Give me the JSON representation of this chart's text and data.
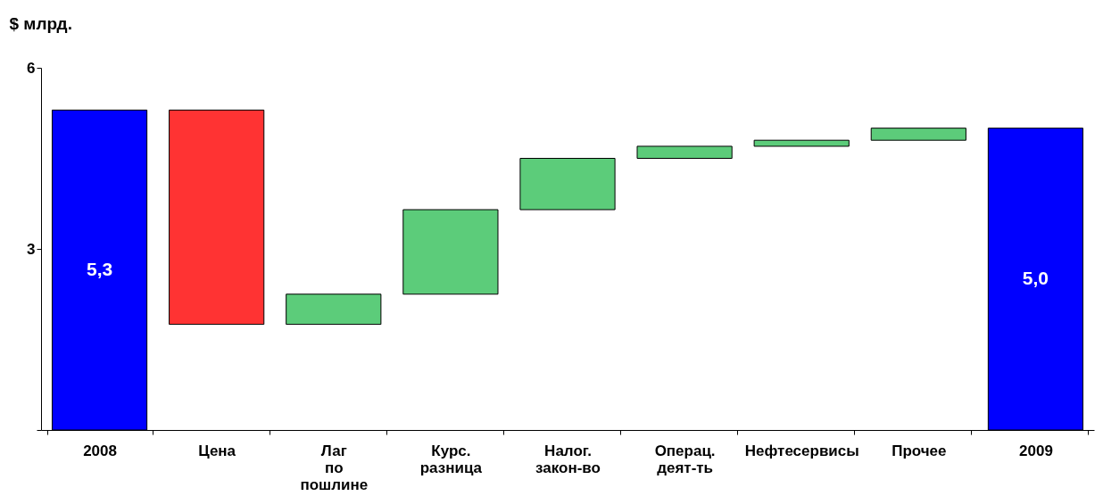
{
  "chart_data": {
    "type": "bar",
    "ylabel": "$ млрд.",
    "categories": [
      "2008",
      "Цена",
      "Лаг по пошлине",
      "Курс. разница",
      "Налог. закон-во",
      "Операц. деят-ть",
      "Нефтесервисы",
      "Прочее",
      "2009"
    ],
    "base": [
      0,
      5.3,
      1.75,
      2.25,
      3.65,
      4.5,
      4.7,
      4.8,
      0
    ],
    "values": [
      5.3,
      -3.55,
      0.5,
      1.4,
      0.85,
      0.2,
      0.1,
      0.2,
      5.0
    ],
    "colors": [
      "#0000ff",
      "#ff3333",
      "#5ccc7a",
      "#5ccc7a",
      "#5ccc7a",
      "#5ccc7a",
      "#5ccc7a",
      "#5ccc7a",
      "#0000ff"
    ],
    "value_labels": [
      "5,3",
      null,
      null,
      null,
      null,
      null,
      null,
      null,
      "5,0"
    ],
    "ylim": [
      0,
      6
    ],
    "yticks": [
      {
        "value": 0,
        "label": null
      },
      3,
      6
    ],
    "grid": false,
    "legend": false
  }
}
